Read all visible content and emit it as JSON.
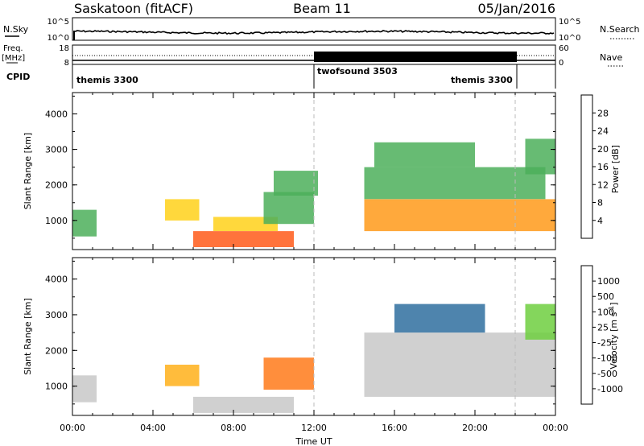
{
  "header": {
    "station": "Saskatoon (fitACF)",
    "beam": "Beam 11",
    "date": "05/Jan/2016"
  },
  "top_panels": {
    "nsky_label": "N.Sky",
    "nsky_left_ticks": [
      "10^5",
      "10^0"
    ],
    "nsky_right_ticks": [
      "10^5",
      "10^0"
    ],
    "nsearch_label": "N.Search",
    "freq_label_1": "Freq.",
    "freq_label_2": "[MHz]",
    "freq_ticks": [
      "18",
      "8"
    ],
    "nave_ticks": [
      "60",
      "0"
    ],
    "nave_label": "Nave",
    "cpid_label": "CPID",
    "cpid_modes": [
      {
        "name": "themis 3300",
        "start_h": 0,
        "end_h": 12
      },
      {
        "name": "twofsound 3503",
        "start_h": 12,
        "end_h": 22
      },
      {
        "name": "themis 3300",
        "start_h": 22,
        "end_h": 24
      }
    ]
  },
  "time_axis": {
    "label": "Time UT",
    "ticks": [
      "00:00",
      "04:00",
      "08:00",
      "12:00",
      "16:00",
      "20:00",
      "00:00"
    ]
  },
  "y_axis": {
    "label": "Slant Range [km]",
    "ticks": [
      "1000",
      "2000",
      "3000",
      "4000"
    ]
  },
  "power_scale": {
    "label": "Power [dB]",
    "ticks": [
      "4",
      "8",
      "12",
      "16",
      "20",
      "24",
      "28"
    ],
    "colors": [
      "#1c1cff",
      "#1f4fa0",
      "#2f7a66",
      "#4caf5a",
      "#a7d13a",
      "#ffd11a",
      "#ff9a1a",
      "#ff5a1a",
      "#ff1a1a"
    ]
  },
  "velocity_scale": {
    "label": "Velocity [m s",
    "label_sup": "-1",
    "label_end": "]",
    "ticks": [
      "1000",
      "500",
      "100",
      "25",
      "-25",
      "-100",
      "-500",
      "-1000"
    ],
    "colors": [
      "#1a3fbf",
      "#2f6f9f",
      "#2f8f4f",
      "#6fcf3f",
      "#c8c8c8",
      "#ffb01a",
      "#ff7a1a",
      "#ff3a1a",
      "#ff0000"
    ]
  },
  "chart_data": {
    "type": "heatmap",
    "title": "Saskatoon (fitACF) Beam 11 05/Jan/2016",
    "xlabel": "Time UT",
    "xlim_hours": [
      0,
      24
    ],
    "ylabel": "Slant Range [km]",
    "ylim_km": [
      180,
      4600
    ],
    "grid": false,
    "panels": [
      {
        "name": "Power",
        "units": "dB",
        "colorbar_range": [
          0,
          32
        ],
        "regions": [
          {
            "t": [
              0.0,
              1.2
            ],
            "r": [
              550,
              1300
            ],
            "v": 12
          },
          {
            "t": [
              4.6,
              6.3
            ],
            "r": [
              1000,
              1600
            ],
            "v": 18
          },
          {
            "t": [
              6.0,
              11.0
            ],
            "r": [
              250,
              700
            ],
            "v": 28
          },
          {
            "t": [
              7.0,
              10.2
            ],
            "r": [
              700,
              1100
            ],
            "v": 20
          },
          {
            "t": [
              9.5,
              12.0
            ],
            "r": [
              900,
              1800
            ],
            "v": 14
          },
          {
            "t": [
              10.0,
              12.2
            ],
            "r": [
              1700,
              2400
            ],
            "v": 12
          },
          {
            "t": [
              14.5,
              24.0
            ],
            "r": [
              700,
              1600
            ],
            "v": 22
          },
          {
            "t": [
              14.5,
              23.5
            ],
            "r": [
              1600,
              2500
            ],
            "v": 12
          },
          {
            "t": [
              15.0,
              20.0
            ],
            "r": [
              2500,
              3200
            ],
            "v": 12
          },
          {
            "t": [
              22.5,
              24.0
            ],
            "r": [
              2300,
              3300
            ],
            "v": 14
          }
        ]
      },
      {
        "name": "Velocity",
        "units": "m s-1",
        "colorbar_range": [
          -1000,
          1000
        ],
        "regions": [
          {
            "t": [
              0.0,
              1.2
            ],
            "r": [
              550,
              1300
            ],
            "v": 100
          },
          {
            "t": [
              4.6,
              6.3
            ],
            "r": [
              1000,
              1600
            ],
            "v": -300
          },
          {
            "t": [
              6.0,
              11.0
            ],
            "r": [
              250,
              700
            ],
            "v": -20
          },
          {
            "t": [
              9.5,
              12.0
            ],
            "r": [
              900,
              1800
            ],
            "v": -400
          },
          {
            "t": [
              14.5,
              24.0
            ],
            "r": [
              700,
              2500
            ],
            "v": 0
          },
          {
            "t": [
              16.0,
              20.5
            ],
            "r": [
              2500,
              3300
            ],
            "v": 600
          },
          {
            "t": [
              22.5,
              24.0
            ],
            "r": [
              2300,
              3300
            ],
            "v": 200
          }
        ]
      }
    ]
  }
}
